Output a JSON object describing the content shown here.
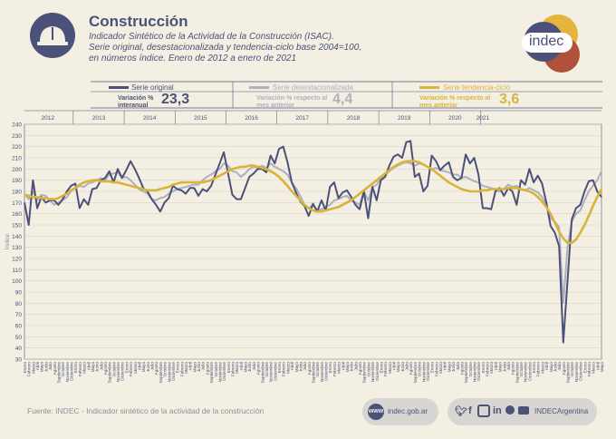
{
  "header": {
    "title": "Construcción",
    "subtitle_lines": [
      "Indicador Sintético de la Actividad de la Construcción (ISAC).",
      "Serie original, desestacionalizada y tendencia-ciclo base 2004=100,",
      "en números índice. Enero de 2012 a enero de 2021"
    ],
    "logo_text": "indec"
  },
  "legend": [
    {
      "name": "Serie original",
      "stat_label": "Variación % interanual",
      "value": "23,3",
      "color": "#4b5178"
    },
    {
      "name": "Serie desestacionalizada",
      "stat_label": "Variación % respecto al mes anterior",
      "value": "4,4",
      "color": "#aeb0bd"
    },
    {
      "name": "Serie tendencia-ciclo",
      "stat_label": "Variación % respecto al mes anterior",
      "value": "3,6",
      "color": "#d8b43a"
    }
  ],
  "footer": {
    "source": "Fuente: INDEC - Indicador sintético de la actividad de la construcción",
    "website": "indec.gob.ar",
    "handle": "INDECArgentina"
  },
  "chart_data": {
    "type": "line",
    "ylabel": "Índice",
    "ylim": [
      30,
      240
    ],
    "yticks": [
      30,
      40,
      50,
      60,
      70,
      80,
      90,
      100,
      110,
      120,
      130,
      140,
      150,
      160,
      170,
      180,
      190,
      200,
      210,
      220,
      230,
      240
    ],
    "years": [
      "2012",
      "2013",
      "2014",
      "2015",
      "2016",
      "2017",
      "2018",
      "2019",
      "2020",
      "2021"
    ],
    "month_labels": [
      "Enero",
      "Febrero",
      "Marzo",
      "Abril",
      "Mayo",
      "Junio",
      "Julio",
      "Agosto",
      "Septiembre",
      "Octubre",
      "Noviembre",
      "Diciembre"
    ],
    "series": [
      {
        "name": "Serie original",
        "color": "#4b5178",
        "values": [
          170,
          150,
          190,
          165,
          175,
          170,
          172,
          172,
          168,
          173,
          180,
          185,
          187,
          165,
          173,
          168,
          182,
          183,
          190,
          192,
          198,
          188,
          200,
          192,
          199,
          207,
          200,
          192,
          183,
          180,
          173,
          168,
          162,
          170,
          174,
          185,
          182,
          181,
          178,
          183,
          183,
          176,
          182,
          180,
          185,
          195,
          205,
          215,
          196,
          177,
          173,
          173,
          183,
          193,
          196,
          200,
          200,
          197,
          212,
          205,
          218,
          220,
          206,
          188,
          179,
          171,
          167,
          158,
          169,
          162,
          172,
          163,
          184,
          188,
          174,
          179,
          181,
          175,
          168,
          164,
          180,
          156,
          184,
          172,
          190,
          193,
          203,
          211,
          213,
          210,
          224,
          225,
          193,
          196,
          180,
          185,
          212,
          207,
          199,
          203,
          206,
          193,
          190,
          192,
          213,
          205,
          210,
          195,
          165,
          165,
          164,
          180,
          183,
          176,
          183,
          180,
          168,
          190,
          186,
          200,
          188,
          194,
          187,
          170,
          149,
          143,
          131,
          45,
          100,
          155,
          165,
          168,
          180,
          189,
          190,
          180,
          175
        ]
      },
      {
        "name": "Serie desestacionalizada",
        "color": "#aeb0bd",
        "values": [
          178,
          173,
          180,
          172,
          177,
          176,
          172,
          168,
          170,
          172,
          175,
          180,
          183,
          185,
          184,
          187,
          188,
          190,
          192,
          190,
          195,
          196,
          197,
          192,
          193,
          190,
          186,
          182,
          180,
          178,
          173,
          172,
          174,
          175,
          178,
          180,
          182,
          183,
          184,
          185,
          186,
          186,
          190,
          193,
          195,
          198,
          200,
          205,
          203,
          198,
          197,
          193,
          196,
          200,
          202,
          201,
          203,
          201,
          205,
          202,
          200,
          198,
          195,
          188,
          183,
          176,
          168,
          165,
          168,
          163,
          164,
          166,
          168,
          172,
          173,
          175,
          176,
          172,
          170,
          168,
          180,
          172,
          184,
          186,
          192,
          195,
          198,
          201,
          203,
          205,
          206,
          205,
          203,
          205,
          204,
          202,
          200,
          201,
          199,
          198,
          197,
          195,
          195,
          192,
          193,
          191,
          189,
          188,
          185,
          184,
          183,
          181,
          180,
          182,
          186,
          184,
          185,
          182,
          181,
          183,
          181,
          179,
          175,
          168,
          156,
          153,
          148,
          80,
          130,
          153,
          160,
          163,
          172,
          180,
          185,
          190,
          198
        ]
      },
      {
        "name": "Serie tendencia-ciclo",
        "color": "#d8b43a",
        "values": [
          177,
          176,
          175,
          175,
          174,
          174,
          173,
          173,
          174,
          176,
          178,
          181,
          183,
          186,
          188,
          189,
          190,
          190,
          189,
          189,
          189,
          188,
          188,
          187,
          186,
          185,
          184,
          183,
          182,
          181,
          181,
          181,
          182,
          183,
          184,
          186,
          187,
          188,
          188,
          188,
          188,
          188,
          188,
          189,
          190,
          192,
          194,
          196,
          198,
          200,
          201,
          202,
          202,
          203,
          203,
          202,
          201,
          200,
          198,
          196,
          193,
          189,
          185,
          180,
          176,
          172,
          168,
          165,
          163,
          162,
          162,
          163,
          164,
          165,
          166,
          168,
          170,
          172,
          175,
          178,
          181,
          184,
          187,
          190,
          193,
          196,
          199,
          202,
          204,
          206,
          207,
          207,
          207,
          206,
          204,
          202,
          200,
          197,
          194,
          191,
          188,
          186,
          184,
          182,
          181,
          180,
          180,
          180,
          181,
          181,
          182,
          182,
          182,
          182,
          183,
          183,
          183,
          182,
          181,
          180,
          178,
          175,
          171,
          166,
          160,
          152,
          144,
          138,
          134,
          134,
          137,
          143,
          150,
          158,
          167,
          175,
          182
        ]
      }
    ]
  }
}
